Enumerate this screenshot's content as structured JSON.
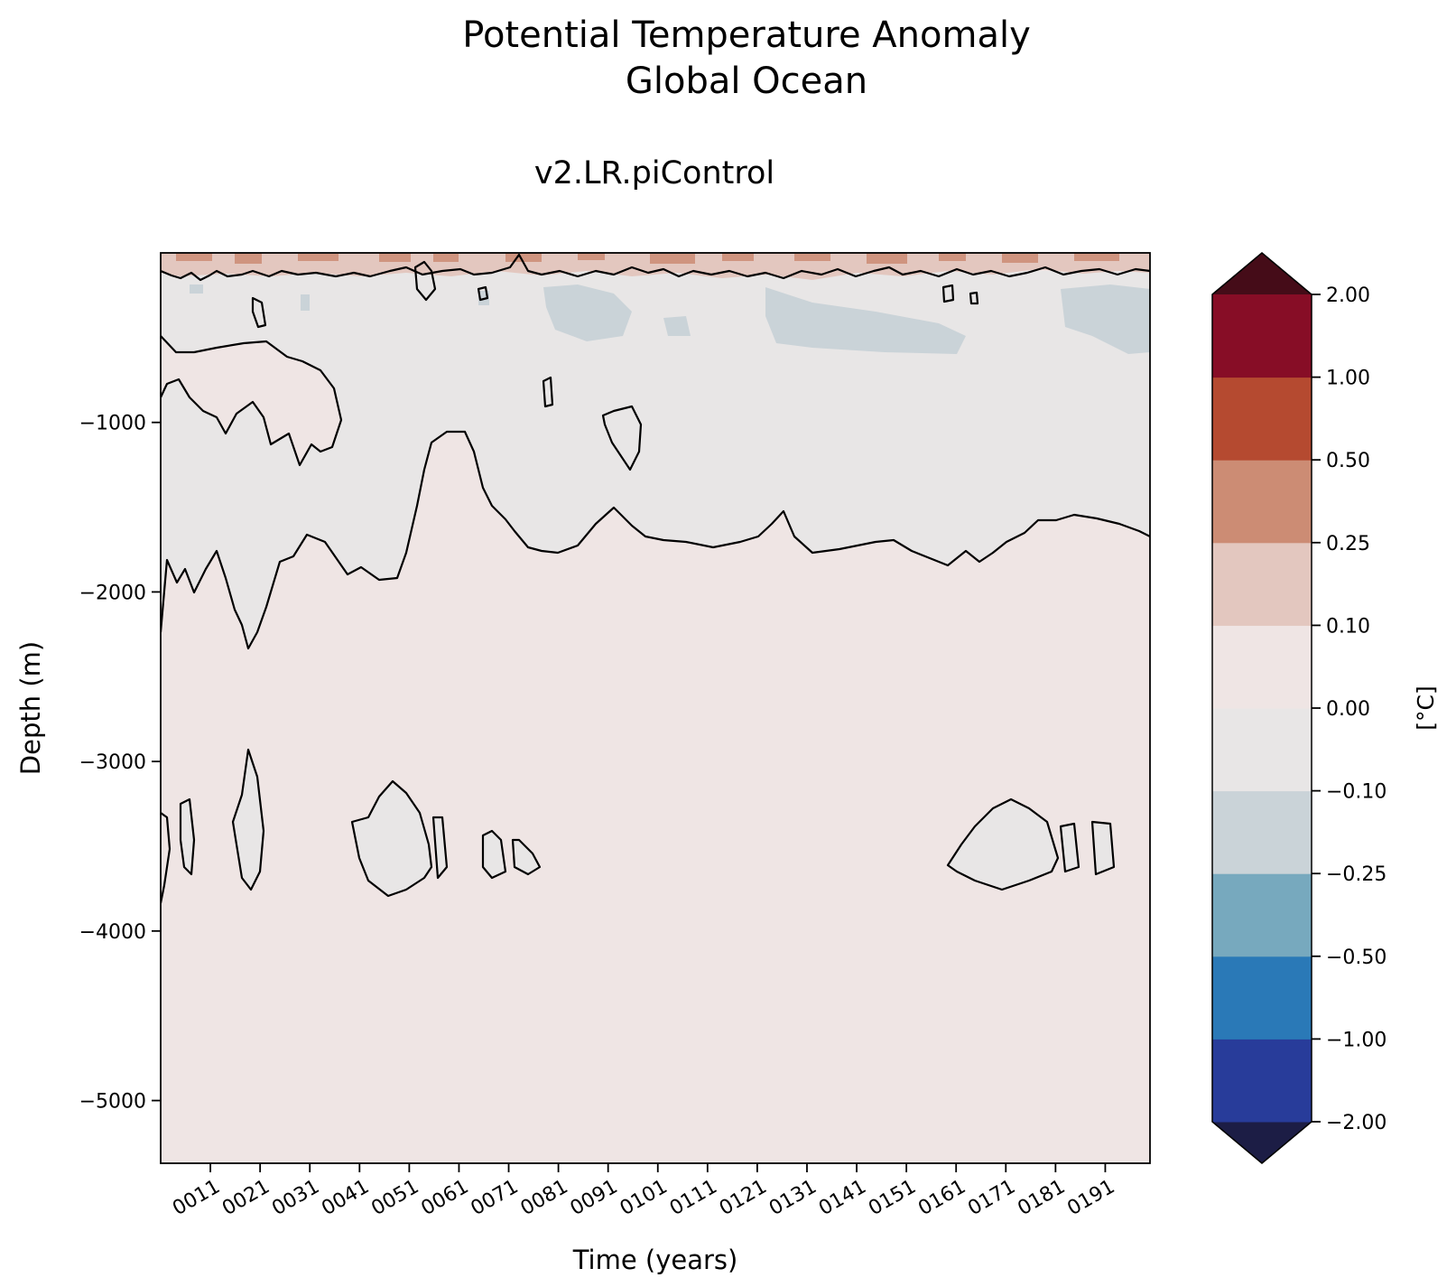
{
  "chart_data": {
    "type": "heatmap",
    "title": "Potential Temperature Anomaly",
    "title_line2": "Global Ocean",
    "subtitle": "v2.LR.piControl",
    "xlabel": "Time (years)",
    "ylabel": "Depth (m)",
    "xlim": [
      1,
      200
    ],
    "ylim": [
      -5370,
      0
    ],
    "x_ticks": [
      {
        "value": 11,
        "label": "0011"
      },
      {
        "value": 21,
        "label": "0021"
      },
      {
        "value": 31,
        "label": "0031"
      },
      {
        "value": 41,
        "label": "0041"
      },
      {
        "value": 51,
        "label": "0051"
      },
      {
        "value": 61,
        "label": "0061"
      },
      {
        "value": 71,
        "label": "0071"
      },
      {
        "value": 81,
        "label": "0081"
      },
      {
        "value": 91,
        "label": "0091"
      },
      {
        "value": 101,
        "label": "0101"
      },
      {
        "value": 111,
        "label": "0111"
      },
      {
        "value": 121,
        "label": "0121"
      },
      {
        "value": 131,
        "label": "0131"
      },
      {
        "value": 141,
        "label": "0141"
      },
      {
        "value": 151,
        "label": "0151"
      },
      {
        "value": 161,
        "label": "0161"
      },
      {
        "value": 171,
        "label": "0171"
      },
      {
        "value": 181,
        "label": "0181"
      },
      {
        "value": 191,
        "label": "0191"
      }
    ],
    "y_ticks": [
      {
        "value": -1000,
        "label": "−1000"
      },
      {
        "value": -2000,
        "label": "−2000"
      },
      {
        "value": -3000,
        "label": "−3000"
      },
      {
        "value": -4000,
        "label": "−4000"
      },
      {
        "value": -5000,
        "label": "−5000"
      }
    ],
    "colorbar": {
      "label": "[°C]",
      "extend": "both",
      "levels": [
        "−2.00",
        "−1.00",
        "−0.50",
        "−0.25",
        "−0.10",
        "0.00",
        "0.10",
        "0.25",
        "0.50",
        "1.00",
        "2.00"
      ],
      "colors": [
        "#283c9a",
        "#2a79b7",
        "#77a9be",
        "#cad3d8",
        "#e8e6e6",
        "#efe5e4",
        "#e3c7bf",
        "#cc8c74",
        "#b54a30",
        "#870d26"
      ],
      "under_color": "#1c1d45",
      "over_color": "#450c18"
    },
    "field": {
      "background_color": "#efe5e4",
      "zero_contour_color": "#000000",
      "regions": [
        {
          "label": "surface warm band",
          "bin": "0.10 to 0.25",
          "color": "#e3c7bf",
          "time": [
            1,
            200
          ],
          "depth": [
            0,
            -120
          ]
        },
        {
          "label": "surface warm patches",
          "bin": "0.25 to 0.50",
          "color": "#cc8c74",
          "time": [
            1,
            200
          ],
          "depth": [
            0,
            -40
          ]
        },
        {
          "label": "upper ocean near-neutral",
          "bin": "−0.10 to 0.00",
          "color": "#e8e6e6",
          "time": [
            1,
            200
          ],
          "depth": [
            -120,
            -1750
          ]
        },
        {
          "label": "cool patch",
          "bin": "−0.25 to −0.10",
          "color": "#cad3d8",
          "time": [
            77,
            96
          ],
          "depth": [
            -180,
            -480
          ]
        },
        {
          "label": "cool patch",
          "bin": "−0.25 to −0.10",
          "color": "#cad3d8",
          "time": [
            120,
            159
          ],
          "depth": [
            -200,
            -600
          ]
        },
        {
          "label": "cool patch",
          "bin": "−0.25 to −0.10",
          "color": "#cad3d8",
          "time": [
            185,
            200
          ],
          "depth": [
            -180,
            -600
          ]
        },
        {
          "label": "mid-depth warm lobe",
          "bin": "0.00 to 0.10",
          "color": "#efe5e4",
          "time": [
            1,
            37
          ],
          "depth": [
            -550,
            -1250
          ]
        },
        {
          "label": "abyssal near-neutral pockets",
          "bin": "−0.10 to 0.00",
          "color": "#e8e6e6",
          "time": [
            [
              3,
              7
            ],
            [
              15,
              21
            ],
            [
              40,
              57
            ],
            [
              63,
              76
            ],
            [
              160,
              177
            ],
            [
              180,
              193
            ]
          ],
          "depth": [
            -3200,
            -3800
          ]
        }
      ]
    }
  }
}
